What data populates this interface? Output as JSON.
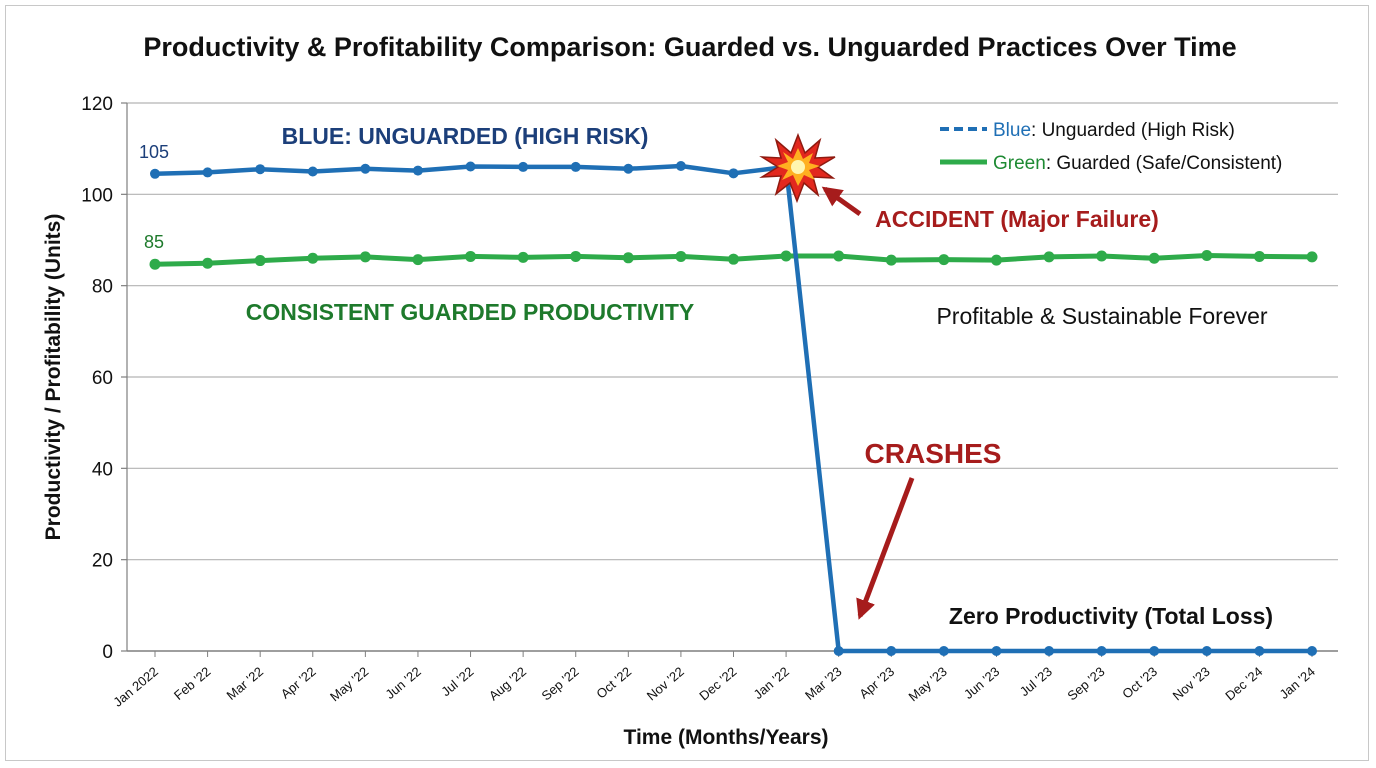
{
  "chart_data": {
    "type": "line",
    "title": "Productivity & Profitability Comparison: Guarded vs. Unguarded Practices Over Time",
    "xlabel": "Time (Months/Years)",
    "ylabel": "Productivity / Profitability (Units)",
    "ylim": [
      0,
      120
    ],
    "yticks": [
      0,
      20,
      40,
      60,
      80,
      100,
      120
    ],
    "grid": true,
    "legend_position": "top-right",
    "categories": [
      "Jan 2022",
      "Feb '22",
      "Mar '22",
      "Apr '22",
      "May '22",
      "Jun '22",
      "Jul '22",
      "Aug '22",
      "Sep '22",
      "Oct '22",
      "Nov '22",
      "Dec '22",
      "Jan '22",
      "Mar '23",
      "Apr '23",
      "May '23",
      "Jun '23",
      "Jul '23",
      "Sep '23",
      "Oct '23",
      "Nov '23",
      "Dec '24",
      "Jan '24"
    ],
    "series": [
      {
        "name": "Unguarded (High Risk)",
        "legend_prefix": "Blue",
        "legend_suffix": ": Unguarded (High Risk)",
        "color": "#1f6fb5",
        "style": "dashed-legend",
        "values": [
          104.5,
          104.8,
          105.5,
          105.0,
          105.6,
          105.2,
          106.1,
          106.0,
          106.0,
          105.6,
          106.2,
          104.6,
          106.0,
          0,
          0,
          0,
          0,
          0,
          0,
          0,
          0,
          0,
          0
        ]
      },
      {
        "name": "Guarded (Safe/Consistent)",
        "legend_prefix": "Green",
        "legend_suffix": ": Guarded (Safe/Consistent)",
        "color": "#2eab4a",
        "style": "solid",
        "values": [
          84.7,
          84.9,
          85.5,
          86.0,
          86.3,
          85.7,
          86.4,
          86.2,
          86.4,
          86.1,
          86.4,
          85.8,
          86.5,
          86.5,
          85.6,
          85.7,
          85.6,
          86.3,
          86.5,
          86.0,
          86.6,
          86.4,
          86.3
        ]
      }
    ],
    "annotations": {
      "blue_label": "BLUE: UNGUARDED (HIGH RISK)",
      "green_label": "CONSISTENT GUARDED PRODUCTIVITY",
      "blue_start": "105",
      "green_start": "85",
      "accident": "ACCIDENT (Major Failure)",
      "crashes": "CRASHES",
      "zero": "Zero Productivity (Total Loss)",
      "sustainable": "Profitable & Sustainable Forever"
    },
    "colors": {
      "grid": "#b3b3b3",
      "axis": "#7f7f7f",
      "arrow": "#a61c1c"
    }
  }
}
